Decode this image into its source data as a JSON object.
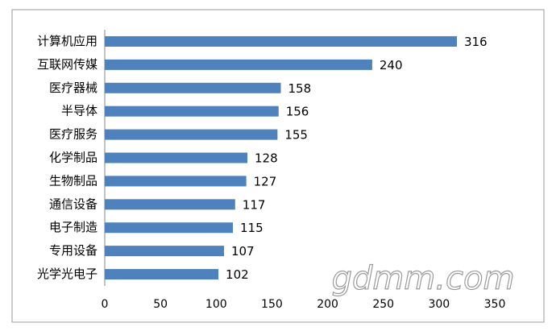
{
  "chart_data": {
    "type": "barh",
    "categories": [
      "计算机应用",
      "互联网传媒",
      "医疗器械",
      "半导体",
      "医疗服务",
      "化学制品",
      "生物制品",
      "通信设备",
      "电子制造",
      "专用设备",
      "光学光电子"
    ],
    "values": [
      316,
      240,
      158,
      156,
      155,
      128,
      127,
      117,
      115,
      107,
      102
    ],
    "color": "#4f81bd",
    "xlim": [
      0,
      350
    ],
    "xticks": [
      0,
      50,
      100,
      150,
      200,
      250,
      300,
      350
    ],
    "grid": false,
    "watermark": "gdmm.com"
  }
}
